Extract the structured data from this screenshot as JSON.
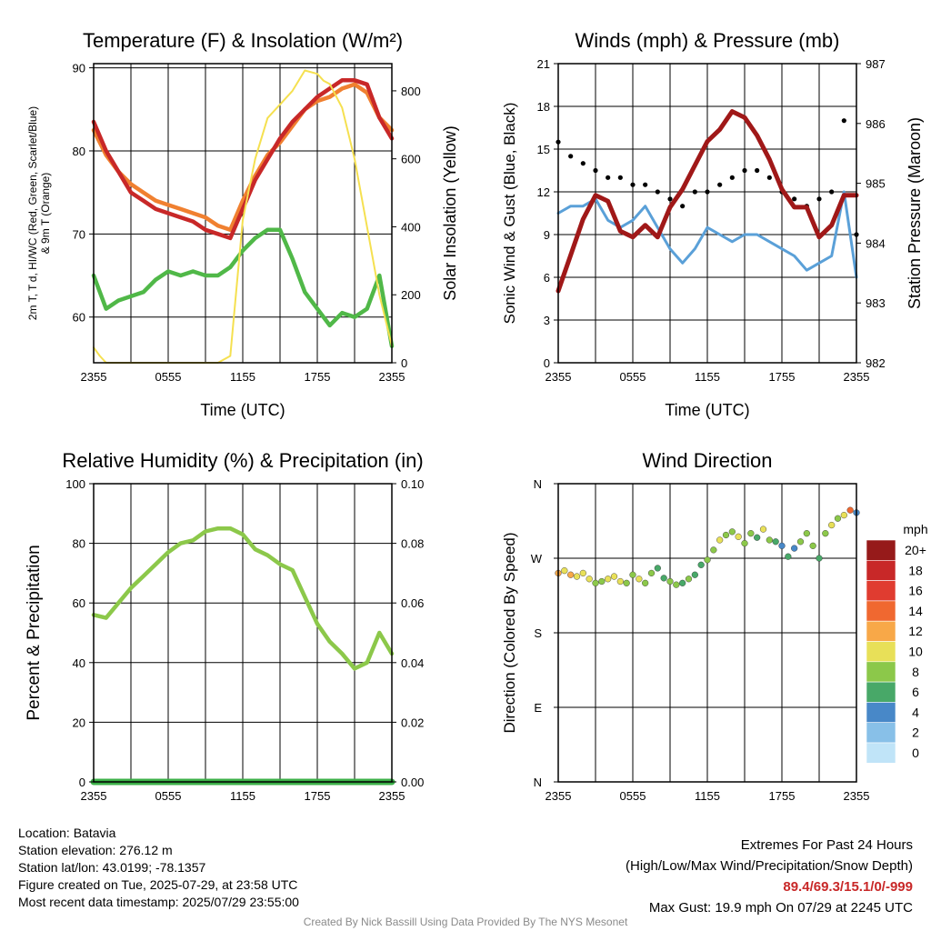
{
  "chart_data": [
    {
      "type": "line",
      "title": "Temperature (F) & Insolation (W/m²)",
      "xlabel": "Time (UTC)",
      "ylabel": "2m T, Td, HI/WC (Red, Green, Scarlet/Blue) & 9m T (Orange)",
      "ylabel_lines": [
        "2m T, T d, HI/WC (Red, Green, Scarlet/Blue)",
        "& 9m T (Orange)"
      ],
      "y2label": "Solar Insolation (Yellow)",
      "x_ticks": [
        "2355",
        "0555",
        "1155",
        "1755",
        "2355"
      ],
      "ylim": [
        54.5,
        90.5
      ],
      "y_ticks": [
        60,
        70,
        80,
        90
      ],
      "y2lim": [
        0,
        880
      ],
      "y2_ticks": [
        0,
        200,
        400,
        600,
        800
      ],
      "series": [
        {
          "color": "#f08030",
          "x": [
            0,
            1,
            2,
            3,
            4,
            5,
            6,
            7,
            8,
            9,
            10,
            11,
            12,
            13,
            14,
            15,
            16,
            17,
            18,
            19,
            20,
            21,
            22,
            23,
            24
          ],
          "values": [
            82.5,
            79.5,
            77.5,
            76,
            75,
            74,
            73.5,
            73,
            72.5,
            72,
            71,
            70.5,
            74,
            77,
            79.5,
            81,
            83,
            85,
            86,
            86.5,
            87.5,
            88,
            87,
            84,
            82.5
          ]
        },
        {
          "color": "#c82828",
          "x": [
            0,
            1,
            2,
            3,
            4,
            5,
            6,
            7,
            8,
            9,
            10,
            11,
            12,
            13,
            14,
            15,
            16,
            17,
            18,
            19,
            20,
            21,
            22,
            23,
            24
          ],
          "values": [
            83.5,
            80,
            77.5,
            75,
            74,
            73,
            72.5,
            72,
            71.5,
            70.5,
            70,
            69.5,
            73,
            76.5,
            79,
            81.5,
            83.5,
            85,
            86.5,
            87.5,
            88.5,
            88.5,
            88,
            84,
            81.5
          ]
        },
        {
          "color": "#50b848",
          "x": [
            0,
            1,
            2,
            3,
            4,
            5,
            6,
            7,
            8,
            9,
            10,
            11,
            12,
            13,
            14,
            15,
            16,
            17,
            18,
            19,
            20,
            21,
            22,
            23,
            24
          ],
          "values": [
            65,
            61,
            62,
            62.5,
            63,
            64.5,
            65.5,
            65,
            65.5,
            65,
            65,
            66,
            68,
            69.5,
            70.5,
            70.5,
            67,
            63,
            61,
            59,
            60.5,
            60,
            61,
            65,
            56.5
          ]
        },
        {
          "color": "#f5e050",
          "x": [
            0,
            0.5,
            1,
            2,
            3,
            4,
            5,
            6,
            7,
            8,
            9,
            10,
            11,
            12,
            13,
            14,
            15,
            16,
            17,
            18,
            18.5,
            19,
            20,
            21,
            22,
            23,
            24
          ],
          "values": [
            45,
            20,
            0,
            0,
            0,
            0,
            0,
            0,
            0,
            0,
            0,
            0,
            20,
            420,
            600,
            720,
            760,
            800,
            860,
            850,
            830,
            820,
            750,
            600,
            400,
            200,
            50
          ],
          "axis": "y2"
        }
      ]
    },
    {
      "type": "line",
      "title": "Winds (mph) & Pressure (mb)",
      "xlabel": "Time (UTC)",
      "ylabel": "Sonic Wind & Gust (Blue, Black)",
      "y2label": "Station Pressure (Maroon)",
      "x_ticks": [
        "2355",
        "0555",
        "1155",
        "1755",
        "2355"
      ],
      "ylim": [
        0,
        21
      ],
      "y_ticks": [
        0,
        3,
        6,
        9,
        12,
        15,
        18,
        21
      ],
      "y2lim": [
        982,
        987
      ],
      "y2_ticks": [
        982,
        983,
        984,
        985,
        986,
        987
      ],
      "series": [
        {
          "color": "#5aa0d8",
          "x": [
            0,
            1,
            2,
            3,
            4,
            5,
            6,
            7,
            8,
            9,
            10,
            11,
            12,
            13,
            14,
            15,
            16,
            17,
            18,
            19,
            20,
            21,
            22,
            23,
            24
          ],
          "values": [
            10.5,
            11,
            11,
            11.5,
            10,
            9.5,
            10,
            11,
            9.5,
            8,
            7,
            8,
            9.5,
            9,
            8.5,
            9,
            9,
            8.5,
            8,
            7.5,
            6.5,
            7,
            7.5,
            12,
            6
          ]
        },
        {
          "color": "#000000",
          "x": [
            0,
            1,
            2,
            3,
            4,
            5,
            6,
            7,
            8,
            9,
            10,
            11,
            12,
            13,
            14,
            15,
            16,
            17,
            18,
            19,
            20,
            21,
            22,
            23,
            24
          ],
          "values": [
            15.5,
            14.5,
            14,
            13.5,
            13,
            13,
            12.5,
            12.5,
            12,
            11.5,
            11,
            12,
            12,
            12.5,
            13,
            13.5,
            13.5,
            13,
            12,
            11.5,
            11,
            11.5,
            12,
            17,
            9
          ]
        },
        {
          "color": "#a01818",
          "x": [
            0,
            1,
            2,
            3,
            4,
            5,
            6,
            7,
            8,
            9,
            10,
            11,
            12,
            13,
            14,
            15,
            16,
            17,
            18,
            19,
            20,
            21,
            22,
            23,
            24
          ],
          "values": [
            983.2,
            983.8,
            984.4,
            984.8,
            984.7,
            984.2,
            984.1,
            984.3,
            984.1,
            984.6,
            984.9,
            985.3,
            985.7,
            985.9,
            986.2,
            986.1,
            985.8,
            985.4,
            984.9,
            984.6,
            984.6,
            984.1,
            984.3,
            984.8,
            984.8
          ],
          "axis": "y2"
        }
      ]
    },
    {
      "type": "line",
      "title": "Relative Humidity (%) & Precipitation (in)",
      "xlabel": "",
      "ylabel": "Percent & Precipitation",
      "x_ticks": [
        "2355",
        "0555",
        "1155",
        "1755",
        "2355"
      ],
      "ylim": [
        0,
        100
      ],
      "y_ticks": [
        0,
        20,
        40,
        60,
        80,
        100
      ],
      "y2lim": [
        0,
        0.1
      ],
      "y2_ticks": [
        "0.00",
        "0.02",
        "0.04",
        "0.06",
        "0.08",
        "0.10"
      ],
      "series": [
        {
          "color": "#8cc84a",
          "x": [
            0,
            1,
            2,
            3,
            4,
            5,
            6,
            7,
            8,
            9,
            10,
            11,
            12,
            13,
            14,
            15,
            16,
            17,
            18,
            19,
            20,
            21,
            22,
            23,
            24
          ],
          "values": [
            56,
            55,
            60,
            65,
            69,
            73,
            77,
            80,
            81,
            84,
            85,
            85,
            83,
            78,
            76,
            73,
            71,
            62,
            53,
            47,
            43,
            38,
            40,
            50,
            43
          ]
        },
        {
          "color": "#3cb048",
          "x": [
            0,
            24
          ],
          "values": [
            0,
            0
          ]
        }
      ]
    },
    {
      "type": "scatter",
      "title": "Wind Direction",
      "ylabel": "Direction (Colored By Speed)",
      "x_ticks": [
        "2355",
        "0555",
        "1155",
        "1755",
        "2355"
      ],
      "y_ticks": [
        "N",
        "E",
        "S",
        "W",
        "N"
      ],
      "ylim": [
        0,
        360
      ],
      "legend": {
        "title": "mph",
        "labels": [
          "20+",
          "18",
          "16",
          "14",
          "12",
          "10",
          "8",
          "6",
          "4",
          "2",
          "0"
        ],
        "colors": [
          "#961a1a",
          "#c82828",
          "#e03c30",
          "#f06830",
          "#f8a848",
          "#e8e058",
          "#8cc84a",
          "#48a868",
          "#4888c8",
          "#88c0e8",
          "#c0e4f8"
        ]
      },
      "points": {
        "x": [
          0,
          0.5,
          1,
          1.5,
          2,
          2.5,
          3,
          3.5,
          4,
          4.5,
          5,
          5.5,
          6,
          6.5,
          7,
          7.5,
          8,
          8.5,
          9,
          9.5,
          10,
          10.5,
          11,
          11.5,
          12,
          12.5,
          13,
          13.5,
          14,
          14.5,
          15,
          15.5,
          16,
          16.5,
          17,
          17.5,
          18,
          18.5,
          19,
          19.5,
          20,
          20.5,
          21,
          21.5,
          22,
          22.5,
          23,
          23.5,
          24
        ],
        "values": [
          252,
          255,
          250,
          248,
          252,
          245,
          240,
          242,
          245,
          248,
          242,
          240,
          250,
          245,
          240,
          252,
          258,
          246,
          242,
          238,
          240,
          245,
          250,
          262,
          268,
          280,
          292,
          298,
          302,
          296,
          288,
          300,
          295,
          305,
          292,
          290,
          285,
          272,
          282,
          290,
          300,
          285,
          270,
          300,
          310,
          318,
          322,
          328,
          325
        ],
        "speed": [
          12,
          11,
          12,
          10,
          10,
          10,
          9,
          9,
          10,
          10,
          10,
          9,
          9,
          10,
          9,
          8,
          6,
          7,
          8,
          8,
          7,
          8,
          6,
          7,
          8,
          9,
          10,
          9,
          8,
          10,
          9,
          8,
          7,
          10,
          9,
          6,
          5,
          7,
          4,
          8,
          9,
          8,
          7,
          9,
          10,
          8,
          11,
          14,
          4
        ]
      }
    }
  ],
  "info_left": [
    "Location: Batavia",
    "Station elevation: 276.12 m",
    "Station lat/lon: 43.0199; -78.1357",
    "Figure created on Tue, 2025-07-29, at 23:58 UTC",
    "Most recent data timestamp: 2025/07/29 23:55:00"
  ],
  "info_right": {
    "line1": "Extremes For Past 24 Hours",
    "line2": "(High/Low/Max Wind/Precipitation/Snow Depth)",
    "values": "89.4/69.3/15.1/0/-999",
    "gust": "Max Gust: 19.9 mph On 07/29 at 2245 UTC"
  },
  "credit": "Created By Nick Bassill Using Data Provided By The NYS Mesonet"
}
